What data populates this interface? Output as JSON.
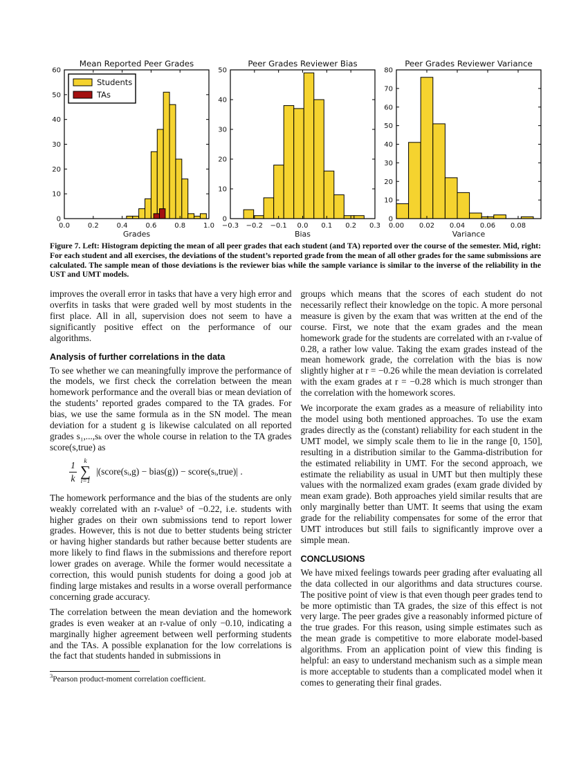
{
  "page": {
    "caption": "Figure 7. Left: Histogram depicting the mean of all peer grades that each student (and TA) reported over the course of the semester. Mid, right: For each student and all exercises, the deviations of the student’s reported grade from the mean of all other grades for the same submissions are calculated. The sample mean of those deviations is the reviewer bias while the sample variance is similar to the inverse of the reliability in the UST and UMT models.",
    "footnote_marker": "3",
    "footnote_text": "Pearson product-moment correlation coefficient."
  },
  "left_column": {
    "p1": "improves the overall error in tasks that have a very high error and overfits in tasks that were graded well by most students in the first place. All in all, supervision does not seem to have a significantly positive effect on the performance of our algorithms.",
    "heading": "Analysis of further correlations in the data",
    "p2": "To see whether we can meaningfully improve the performance of the models, we first check the correlation between the mean homework performance and the overall bias or mean deviation of the students’ reported grades compared to the TA grades. For bias, we use the same formula as in the SN model. The mean deviation for a student g is likewise calculated on all reported grades s₁,...,sₖ over the whole course in relation to the TA grades score(s,true) as",
    "formula": {
      "frac_num": "1",
      "frac_den": "k",
      "sum_top": "k",
      "sum_sym": "∑",
      "sum_bot": "i=1",
      "body": "|(score(sᵢ,g) − bias(g)) − score(sᵢ,true)| ."
    },
    "p3": "The homework performance and the bias of the students are only weakly correlated with an r-value³ of −0.22, i.e. students with higher grades on their own submissions tend to report lower grades. However, this is not due to better students being stricter or having higher standards but rather because better students are more likely to find flaws in the submissions and therefore report lower grades on average. While the former would necessitate a correction, this would punish students for doing a good job at finding large mistakes and results in a worse overall performance concerning grade accuracy.",
    "p4": "The correlation between the mean deviation and the homework grades is even weaker at an r-value of only −0.10, indicating a marginally higher agreement between well performing students and the TAs. A possible explanation for the low correlations is the fact that students handed in submissions in"
  },
  "right_column": {
    "p1": "groups which means that the scores of each student do not necessarily reflect their knowledge on the topic. A more personal measure is given by the exam that was written at the end of the course. First, we note that the exam grades and the mean homework grade for the students are correlated with an r-value of 0.28, a rather low value. Taking the exam grades instead of the mean homework grade, the correlation with the bias is now slightly higher at r = −0.26 while the mean deviation is correlated with the exam grades at r = −0.28 which is much stronger than the correlation with the homework scores.",
    "p2": "We incorporate the exam grades as a measure of reliability into the model using both mentioned approaches. To use the exam grades directly as the (constant) reliability for each student in the UMT model, we simply scale them to lie in the range [0, 150], resulting in a distribution similar to the Gamma-distribution for the estimated reliability in UMT. For the second approach, we estimate the reliability as usual in UMT but then multiply these values with the normalized exam grades (exam grade divided by mean exam grade). Both approaches yield similar results that are only marginally better than UMT. It seems that using the exam grade for the reliability compensates for some of the error that UMT introduces but still fails to significantly improve over a simple mean.",
    "heading": "CONCLUSIONS",
    "p3": "We have mixed feelings towards peer grading after evaluating all the data collected in our algorithms and data structures course. The positive point of view is that even though peer grades tend to be more optimistic than TA grades, the size of this effect is not very large. The peer grades give a reasonably informed picture of the true grades. For this reason, using simple estimates such as the mean grade is competitive to more elaborate model-based algorithms. From an application point of view this finding is helpful: an easy to understand mechanism such as a simple mean is more acceptable to students than a complicated model when it comes to generating their final grades."
  },
  "chart_data": [
    {
      "type": "bar",
      "title": "Mean Reported Peer Grades",
      "xlabel": "Grades",
      "ylabel": "",
      "xlim": [
        0.0,
        1.0
      ],
      "ylim": [
        0,
        60
      ],
      "xticks": [
        0.0,
        0.2,
        0.4,
        0.6,
        0.8,
        1.0
      ],
      "xtick_labels": [
        "0.0",
        "0.2",
        "0.4",
        "0.6",
        "0.8",
        "1.0"
      ],
      "yticks": [
        0,
        10,
        20,
        30,
        40,
        50,
        60
      ],
      "grid": false,
      "legend": {
        "position": "upper-left",
        "entries": [
          {
            "label": "Students",
            "color": "#F5D32F"
          },
          {
            "label": "TAs",
            "color": "#A31010"
          }
        ]
      },
      "series": [
        {
          "name": "Students",
          "color": "#F5D32F",
          "bin_width": 0.0425,
          "bin_left": [
            0.43,
            0.4725,
            0.515,
            0.5575,
            0.6,
            0.6425,
            0.685,
            0.7275,
            0.77,
            0.8125,
            0.855,
            0.8975,
            0.94
          ],
          "values": [
            1,
            1,
            4,
            8,
            27,
            36,
            51,
            46,
            24,
            16,
            2,
            1,
            2
          ]
        },
        {
          "name": "TAs",
          "color": "#A31010",
          "bin_width": 0.04,
          "bin_left": [
            0.618,
            0.658
          ],
          "values": [
            2,
            4
          ]
        }
      ]
    },
    {
      "type": "bar",
      "title": "Peer Grades Reviewer Bias",
      "xlabel": "Bias",
      "ylabel": "",
      "xlim": [
        -0.3,
        0.3
      ],
      "ylim": [
        0,
        50
      ],
      "xticks": [
        -0.3,
        -0.2,
        -0.1,
        0.0,
        0.1,
        0.2,
        0.3
      ],
      "xtick_labels": [
        "−0.3",
        "−0.2",
        "−0.1",
        "0.0",
        "0.1",
        "0.2",
        "0.3"
      ],
      "yticks": [
        0,
        10,
        20,
        30,
        40,
        50
      ],
      "grid": false,
      "series": [
        {
          "name": "Students",
          "color": "#F5D32F",
          "bin_width": 0.04167,
          "bin_left": [
            -0.245,
            -0.20333,
            -0.16167,
            -0.12,
            -0.07833,
            -0.03667,
            0.005,
            0.04667,
            0.08833,
            0.13,
            0.17167,
            0.21333
          ],
          "values": [
            3,
            1,
            7,
            18,
            38,
            37,
            49,
            40,
            16,
            8,
            1,
            1
          ]
        }
      ]
    },
    {
      "type": "bar",
      "title": "Peer Grades Reviewer Variance",
      "xlabel": "Variance",
      "ylabel": "",
      "xlim": [
        0.0,
        0.095
      ],
      "ylim": [
        0,
        80
      ],
      "xticks": [
        0.0,
        0.02,
        0.04,
        0.06,
        0.08
      ],
      "xtick_labels": [
        "0.00",
        "0.02",
        "0.04",
        "0.06",
        "0.08"
      ],
      "yticks": [
        0,
        10,
        20,
        30,
        40,
        50,
        60,
        70,
        80
      ],
      "grid": false,
      "series": [
        {
          "name": "Students",
          "color": "#F5D32F",
          "bin_width": 0.008,
          "bin_left": [
            0.0,
            0.008,
            0.016,
            0.024,
            0.032,
            0.04,
            0.048,
            0.056,
            0.064,
            0.082
          ],
          "values": [
            8,
            41,
            76,
            51,
            22,
            14,
            3,
            1,
            2,
            1
          ]
        }
      ]
    }
  ]
}
